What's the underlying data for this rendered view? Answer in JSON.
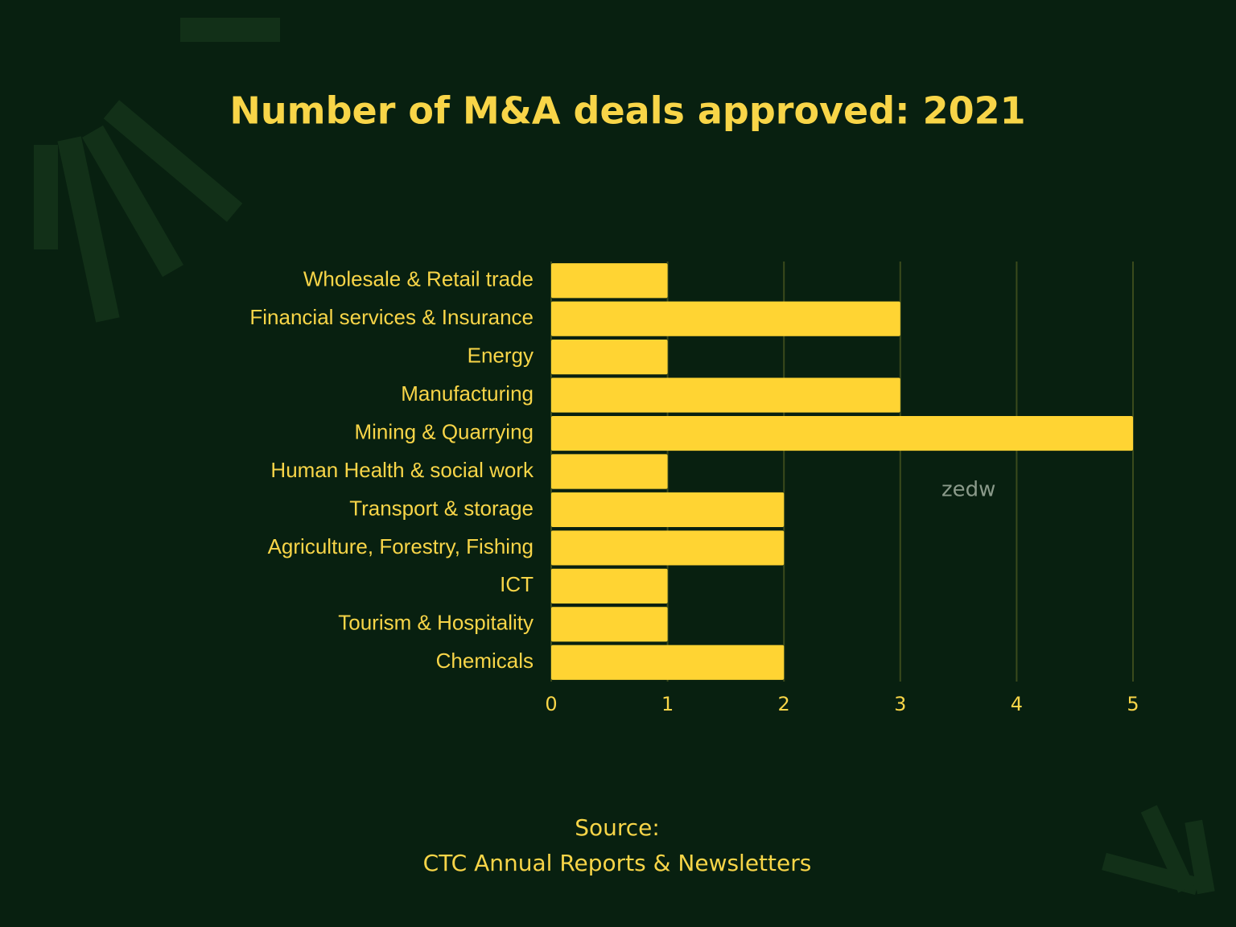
{
  "chart_data": {
    "type": "bar",
    "orientation": "horizontal",
    "title": "Number of M&A deals approved: 2021",
    "categories": [
      "Wholesale & Retail trade",
      "Financial services & Insurance",
      "Energy",
      "Manufacturing",
      "Mining & Quarrying",
      "Human Health & social work",
      "Transport & storage",
      "Agriculture, Forestry, Fishing",
      "ICT",
      "Tourism & Hospitality",
      "Chemicals"
    ],
    "values": [
      1,
      3,
      1,
      3,
      5,
      1,
      2,
      2,
      1,
      1,
      2
    ],
    "color": "#ffd433",
    "xlim": [
      0,
      5
    ],
    "xticks": [
      0,
      1,
      2,
      3,
      4,
      5
    ],
    "grid": true,
    "source": [
      "Source:",
      "CTC Annual Reports & Newsletters"
    ],
    "watermark": "zedw"
  }
}
